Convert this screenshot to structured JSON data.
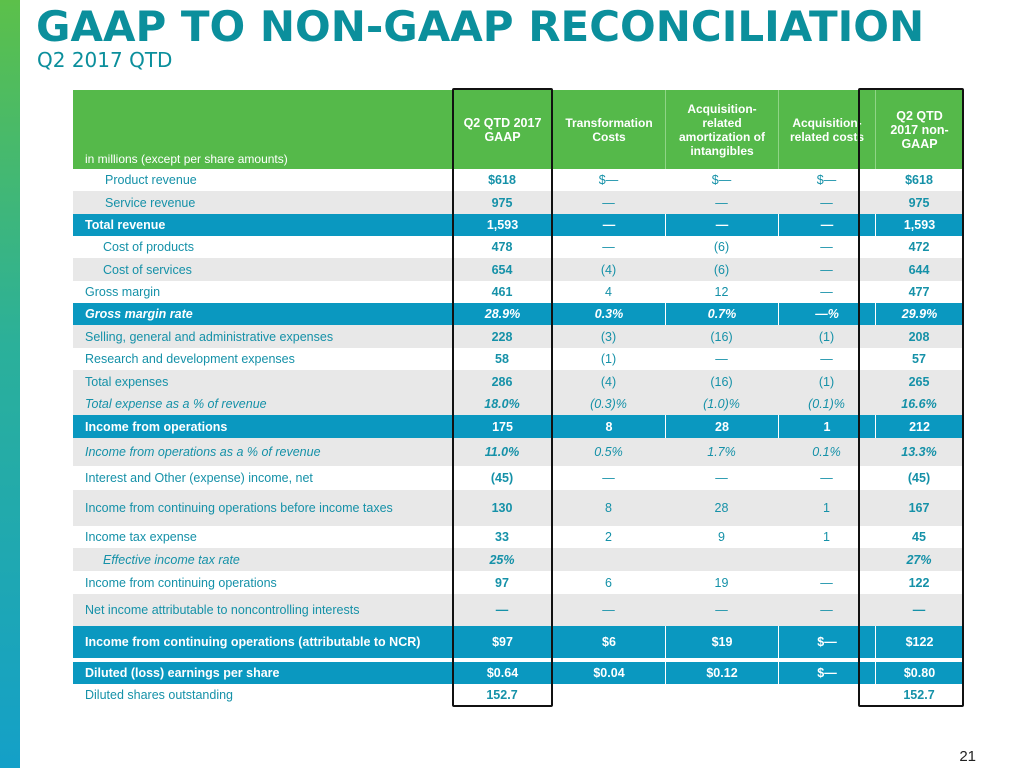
{
  "title": "GAAP TO NON-GAAP RECONCILIATION",
  "subtitle": "Q2 2017 QTD",
  "page_number": "21",
  "colors": {
    "header_green": "#55b94a",
    "highlight_blue": "#0a98c0",
    "text_teal": "#1591a8"
  },
  "table": {
    "units": "in millions (except per share amounts)",
    "columns": [
      "Q2 QTD 2017 GAAP",
      "Transformation Costs",
      "Acquisition-related amortization of intangibles",
      "Acquisition-related costs",
      "Q2 QTD 2017 non-GAAP"
    ],
    "rows": [
      {
        "label": "Product revenue",
        "values": [
          "$618",
          "$—",
          "$—",
          "$—",
          "$618"
        ]
      },
      {
        "label": "Service revenue",
        "values": [
          "975",
          "—",
          "—",
          "—",
          "975"
        ]
      },
      {
        "label": "Total revenue",
        "values": [
          "1,593",
          "—",
          "—",
          "—",
          "1,593"
        ]
      },
      {
        "label": "Cost of products",
        "values": [
          "478",
          "—",
          "(6)",
          "—",
          "472"
        ]
      },
      {
        "label": "Cost of services",
        "values": [
          "654",
          "(4)",
          "(6)",
          "—",
          "644"
        ]
      },
      {
        "label": "Gross margin",
        "values": [
          "461",
          "4",
          "12",
          "—",
          "477"
        ]
      },
      {
        "label": "Gross margin rate",
        "values": [
          "28.9%",
          "0.3%",
          "0.7%",
          "—%",
          "29.9%"
        ]
      },
      {
        "label": "Selling, general and administrative expenses",
        "values": [
          "228",
          "(3)",
          "(16)",
          "(1)",
          "208"
        ]
      },
      {
        "label": "Research and development expenses",
        "values": [
          "58",
          "(1)",
          "—",
          "—",
          "57"
        ]
      },
      {
        "label": "Total expenses",
        "values": [
          "286",
          "(4)",
          "(16)",
          "(1)",
          "265"
        ]
      },
      {
        "label": "Total expense as a % of revenue",
        "values": [
          "18.0%",
          "(0.3)%",
          "(1.0)%",
          "(0.1)%",
          "16.6%"
        ]
      },
      {
        "label": "Income from operations",
        "values": [
          "175",
          "8",
          "28",
          "1",
          "212"
        ]
      },
      {
        "label": "Income from operations as a % of revenue",
        "values": [
          "11.0%",
          "0.5%",
          "1.7%",
          "0.1%",
          "13.3%"
        ]
      },
      {
        "label": "Interest and Other (expense) income, net",
        "values": [
          "(45)",
          "—",
          "—",
          "—",
          "(45)"
        ]
      },
      {
        "label": "Income from continuing operations before income taxes",
        "values": [
          "130",
          "8",
          "28",
          "1",
          "167"
        ]
      },
      {
        "label": "Income tax expense",
        "values": [
          "33",
          "2",
          "9",
          "1",
          "45"
        ]
      },
      {
        "label": "Effective income tax rate",
        "values": [
          "25%",
          "",
          "",
          "",
          "27%"
        ]
      },
      {
        "label": "Income from continuing operations",
        "values": [
          "97",
          "6",
          "19",
          "—",
          "122"
        ]
      },
      {
        "label": "Net income attributable to noncontrolling interests",
        "values": [
          "—",
          "—",
          "—",
          "—",
          "—"
        ]
      },
      {
        "label": "Income from continuing operations (attributable to NCR)",
        "values": [
          "$97",
          "$6",
          "$19",
          "$—",
          "$122"
        ]
      },
      {
        "label": "Diluted (loss) earnings per share",
        "values": [
          "$0.64",
          "$0.04",
          "$0.12",
          "$—",
          "$0.80"
        ]
      },
      {
        "label": "Diluted shares outstanding",
        "values": [
          "152.7",
          "",
          "",
          "",
          "152.7"
        ]
      }
    ]
  }
}
